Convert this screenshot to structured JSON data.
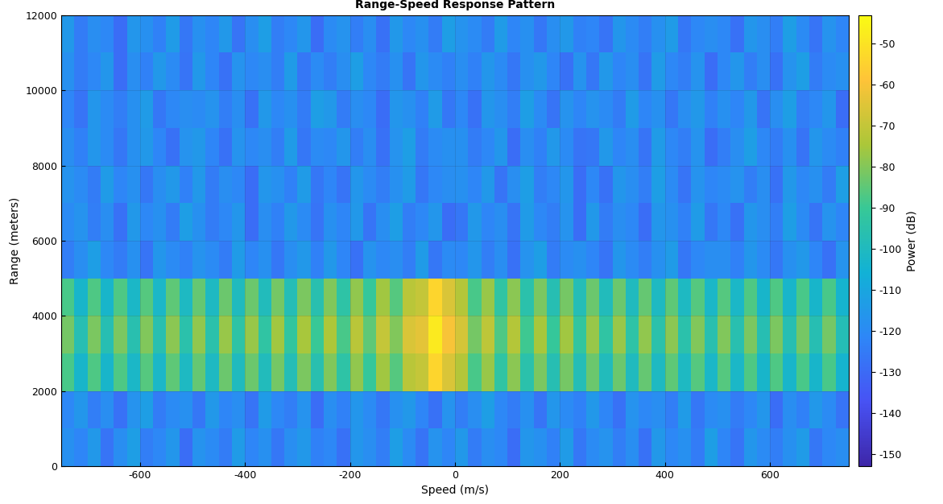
{
  "chart_data": {
    "type": "heatmap",
    "title": "Range-Speed Response Pattern",
    "x_label": "Speed (m/s)",
    "y_label": "Range (meters)",
    "colorbar_label": "Power (dB)",
    "xlim": [
      -750,
      750
    ],
    "ylim": [
      0,
      12000
    ],
    "xticks": [
      -600,
      -400,
      -200,
      0,
      200,
      400,
      600
    ],
    "yticks": [
      0,
      2000,
      4000,
      6000,
      8000,
      10000,
      12000
    ],
    "grid": true,
    "colorbar_range": [
      -153,
      -43
    ],
    "colorbar_ticks": [
      -150,
      -140,
      -130,
      -120,
      -110,
      -100,
      -90,
      -80,
      -70,
      -60,
      -50
    ],
    "x_edges": [
      -750,
      -725,
      -700,
      -675,
      -650,
      -625,
      -600,
      -575,
      -550,
      -525,
      -500,
      -475,
      -450,
      -425,
      -400,
      -375,
      -350,
      -325,
      -300,
      -275,
      -250,
      -225,
      -200,
      -175,
      -150,
      -125,
      -100,
      -75,
      -50,
      -25,
      0,
      25,
      50,
      75,
      100,
      125,
      150,
      175,
      200,
      225,
      250,
      275,
      300,
      325,
      350,
      375,
      400,
      425,
      450,
      475,
      500,
      525,
      550,
      575,
      600,
      625,
      650,
      675,
      700,
      725,
      750
    ],
    "y_edges": [
      0,
      1000,
      2000,
      3000,
      4000,
      5000,
      6000,
      7000,
      8000,
      9000,
      10000,
      11000,
      12000
    ],
    "cells": [
      [
        -118,
        -122,
        -115,
        -127,
        -119,
        -113,
        -124,
        -121,
        -116,
        -129,
        -117,
        -120,
        -125,
        -114,
        -122,
        -118,
        -126,
        -119,
        -115,
        -123,
        -121,
        -128,
        -116,
        -119,
        -124,
        -113,
        -120,
        -127,
        -117,
        -122,
        -115,
        -125,
        -119,
        -121,
        -129,
        -116,
        -118,
        -123,
        -114,
        -126,
        -120,
        -117,
        -124,
        -119,
        -128,
        -115,
        -121,
        -118,
        -125,
        -113,
        -122,
        -127,
        -116,
        -120,
        -124,
        -118,
        -114,
        -126,
        -121,
        -119
      ],
      [
        -121,
        -116,
        -124,
        -119,
        -128,
        -117,
        -113,
        -125,
        -120,
        -118,
        -126,
        -115,
        -122,
        -119,
        -127,
        -114,
        -121,
        -124,
        -117,
        -129,
        -119,
        -123,
        -116,
        -120,
        -126,
        -118,
        -115,
        -122,
        -128,
        -117,
        -124,
        -119,
        -113,
        -121,
        -125,
        -118,
        -127,
        -116,
        -120,
        -123,
        -115,
        -122,
        -128,
        -117,
        -121,
        -119,
        -124,
        -114,
        -126,
        -120,
        -118,
        -125,
        -121,
        -116,
        -129,
        -119,
        -123,
        -115,
        -120,
        -127
      ],
      [
        -88,
        -103,
        -87,
        -103,
        -87,
        -102,
        -86,
        -102,
        -85,
        -101,
        -84,
        -101,
        -83,
        -100,
        -83,
        -99,
        -82,
        -98,
        -81,
        -96,
        -80,
        -94,
        -78,
        -91,
        -76,
        -86,
        -72,
        -70,
        -54,
        -66,
        -73,
        -88,
        -77,
        -93,
        -79,
        -95,
        -81,
        -97,
        -82,
        -98,
        -83,
        -99,
        -83,
        -100,
        -84,
        -101,
        -85,
        -101,
        -86,
        -102,
        -86,
        -102,
        -87,
        -103,
        -87,
        -103,
        -88,
        -103,
        -88,
        -104
      ],
      [
        -82,
        -97,
        -81,
        -97,
        -81,
        -96,
        -80,
        -96,
        -79,
        -95,
        -78,
        -95,
        -77,
        -94,
        -77,
        -93,
        -76,
        -92,
        -75,
        -90,
        -74,
        -88,
        -72,
        -85,
        -70,
        -80,
        -66,
        -64,
        -48,
        -60,
        -67,
        -82,
        -71,
        -87,
        -73,
        -89,
        -75,
        -91,
        -76,
        -92,
        -77,
        -93,
        -77,
        -94,
        -78,
        -95,
        -79,
        -95,
        -80,
        -96,
        -80,
        -96,
        -81,
        -97,
        -81,
        -97,
        -82,
        -97,
        -82,
        -98
      ],
      [
        -88,
        -103,
        -87,
        -103,
        -87,
        -102,
        -86,
        -102,
        -85,
        -101,
        -84,
        -101,
        -83,
        -100,
        -83,
        -99,
        -82,
        -98,
        -81,
        -96,
        -80,
        -94,
        -78,
        -91,
        -76,
        -86,
        -72,
        -70,
        -54,
        -66,
        -73,
        -88,
        -77,
        -93,
        -79,
        -95,
        -81,
        -97,
        -82,
        -98,
        -83,
        -99,
        -83,
        -100,
        -84,
        -101,
        -85,
        -101,
        -86,
        -102,
        -86,
        -102,
        -87,
        -103,
        -87,
        -103,
        -88,
        -103,
        -88,
        -104
      ],
      [
        -124,
        -119,
        -113,
        -121,
        -125,
        -118,
        -127,
        -116,
        -120,
        -123,
        -117,
        -120,
        -125,
        -114,
        -122,
        -118,
        -126,
        -119,
        -115,
        -123,
        -115,
        -122,
        -128,
        -117,
        -121,
        -119,
        -124,
        -114,
        -126,
        -120,
        -121,
        -116,
        -124,
        -119,
        -128,
        -117,
        -113,
        -125,
        -120,
        -118,
        -122,
        -127,
        -116,
        -120,
        -124,
        -118,
        -114,
        -126,
        -121,
        -119,
        -119,
        -123,
        -116,
        -120,
        -126,
        -118,
        -115,
        -122,
        -128,
        -117
      ],
      [
        -120,
        -117,
        -124,
        -119,
        -128,
        -115,
        -121,
        -118,
        -125,
        -113,
        -118,
        -125,
        -121,
        -116,
        -129,
        -119,
        -123,
        -115,
        -120,
        -127,
        -118,
        -122,
        -115,
        -127,
        -119,
        -113,
        -124,
        -121,
        -116,
        -129,
        -126,
        -115,
        -122,
        -119,
        -127,
        -114,
        -121,
        -124,
        -117,
        -129,
        -115,
        -125,
        -119,
        -121,
        -129,
        -116,
        -118,
        -123,
        -114,
        -126,
        -121,
        -128,
        -116,
        -119,
        -124,
        -113,
        -120,
        -127,
        -117,
        -122
      ],
      [
        -117,
        -120,
        -125,
        -114,
        -122,
        -118,
        -126,
        -119,
        -115,
        -123,
        -115,
        -125,
        -119,
        -121,
        -129,
        -116,
        -118,
        -123,
        -114,
        -126,
        -122,
        -127,
        -116,
        -120,
        -124,
        -118,
        -114,
        -126,
        -121,
        -119,
        -118,
        -122,
        -115,
        -127,
        -119,
        -113,
        -124,
        -121,
        -116,
        -129,
        -121,
        -128,
        -116,
        -119,
        -124,
        -113,
        -120,
        -127,
        -117,
        -122,
        -120,
        -117,
        -124,
        -119,
        -128,
        -115,
        -121,
        -118,
        -125,
        -113
      ],
      [
        -119,
        -123,
        -116,
        -120,
        -126,
        -118,
        -115,
        -122,
        -128,
        -117,
        -115,
        -122,
        -128,
        -117,
        -121,
        -119,
        -124,
        -114,
        -126,
        -120,
        -121,
        -116,
        -124,
        -119,
        -128,
        -117,
        -113,
        -125,
        -120,
        -118,
        -118,
        -125,
        -121,
        -116,
        -129,
        -119,
        -123,
        -115,
        -120,
        -127,
        -126,
        -115,
        -122,
        -119,
        -127,
        -114,
        -121,
        -124,
        -117,
        -129,
        -124,
        -119,
        -113,
        -121,
        -125,
        -118,
        -127,
        -116,
        -120,
        -123
      ],
      [
        -122,
        -127,
        -116,
        -120,
        -124,
        -118,
        -114,
        -126,
        -121,
        -119,
        -120,
        -117,
        -124,
        -119,
        -128,
        -115,
        -121,
        -118,
        -125,
        -113,
        -115,
        -125,
        -119,
        -121,
        -129,
        -116,
        -118,
        -123,
        -114,
        -126,
        -121,
        -128,
        -116,
        -119,
        -124,
        -113,
        -120,
        -127,
        -117,
        -122,
        -117,
        -120,
        -125,
        -114,
        -122,
        -118,
        -126,
        -119,
        -115,
        -123,
        -118,
        -122,
        -115,
        -127,
        -119,
        -113,
        -124,
        -121,
        -116,
        -129
      ],
      [
        -118,
        -125,
        -121,
        -116,
        -129,
        -119,
        -123,
        -115,
        -120,
        -127,
        -115,
        -122,
        -128,
        -117,
        -121,
        -119,
        -124,
        -114,
        -126,
        -120,
        -124,
        -119,
        -113,
        -121,
        -125,
        -118,
        -127,
        -116,
        -120,
        -123,
        -119,
        -123,
        -116,
        -120,
        -126,
        -118,
        -115,
        -122,
        -128,
        -117,
        -126,
        -115,
        -122,
        -119,
        -127,
        -114,
        -121,
        -124,
        -117,
        -129,
        -121,
        -116,
        -124,
        -119,
        -128,
        -117,
        -113,
        -125,
        -120,
        -118
      ],
      [
        -115,
        -125,
        -119,
        -121,
        -129,
        -116,
        -118,
        -123,
        -114,
        -126,
        -118,
        -122,
        -115,
        -127,
        -119,
        -113,
        -124,
        -121,
        -116,
        -129,
        -120,
        -117,
        -124,
        -119,
        -128,
        -115,
        -121,
        -118,
        -125,
        -113,
        -117,
        -120,
        -125,
        -114,
        -122,
        -118,
        -126,
        -119,
        -115,
        -123,
        -122,
        -127,
        -116,
        -120,
        -124,
        -118,
        -114,
        -126,
        -121,
        -119,
        -121,
        -128,
        -116,
        -119,
        -124,
        -113,
        -120,
        -127,
        -117,
        -122
      ]
    ]
  }
}
